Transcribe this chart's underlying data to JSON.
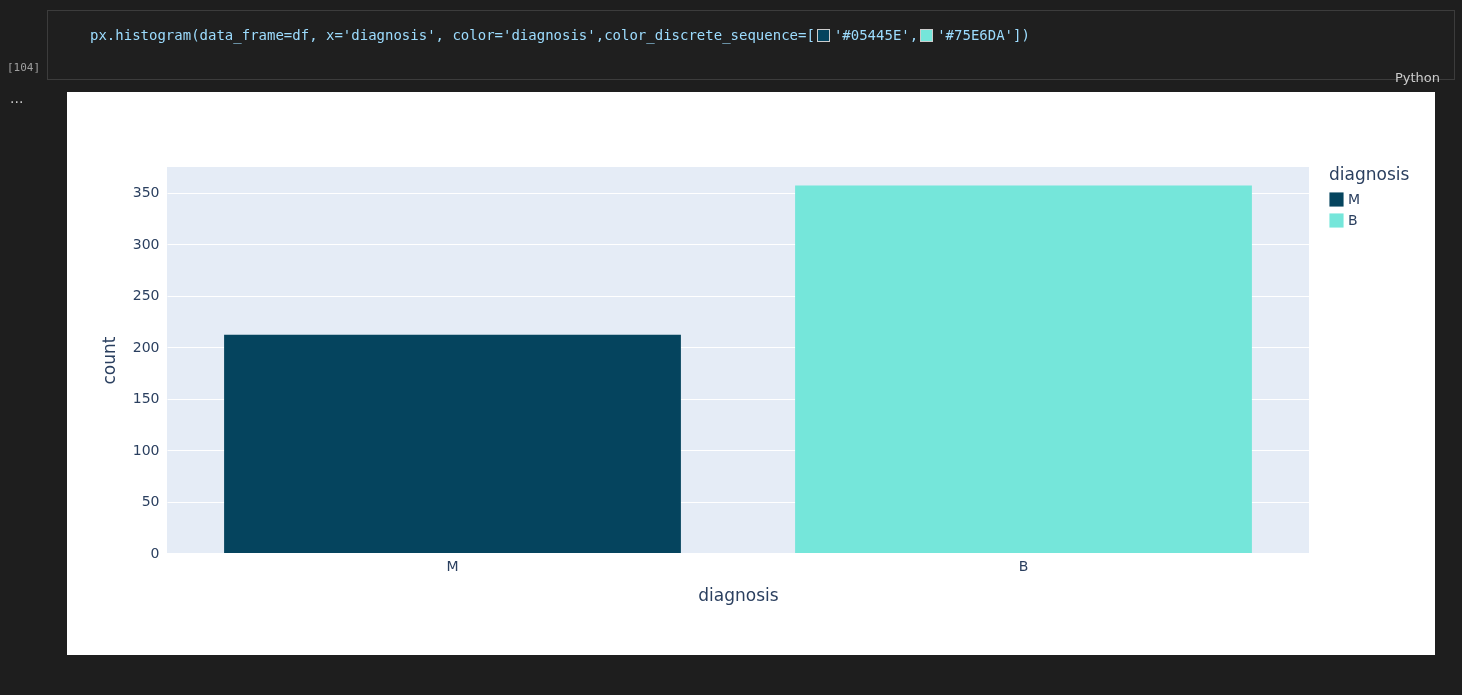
{
  "chart_data": {
    "type": "bar",
    "xlabel": "diagnosis",
    "ylabel": "count",
    "legend_title": "diagnosis",
    "categories": [
      "M",
      "B"
    ],
    "series": [
      {
        "name": "M",
        "color": "#05445E",
        "values": [
          212,
          null
        ]
      },
      {
        "name": "B",
        "color": "#75E6DA",
        "values": [
          null,
          357
        ]
      }
    ],
    "ylim": [
      0,
      375
    ],
    "yticks": [
      0,
      50,
      100,
      150,
      200,
      250,
      300,
      350
    ],
    "grid": "y",
    "legend": "top right",
    "annotations": [
      "px.histogram(data_frame=df, x='diagnosis', color='diagnosis',color_discrete_sequence=[",
      "'#05445E',",
      "'#75E6DA'])",
      "[104]",
      "Python",
      "..."
    ]
  }
}
